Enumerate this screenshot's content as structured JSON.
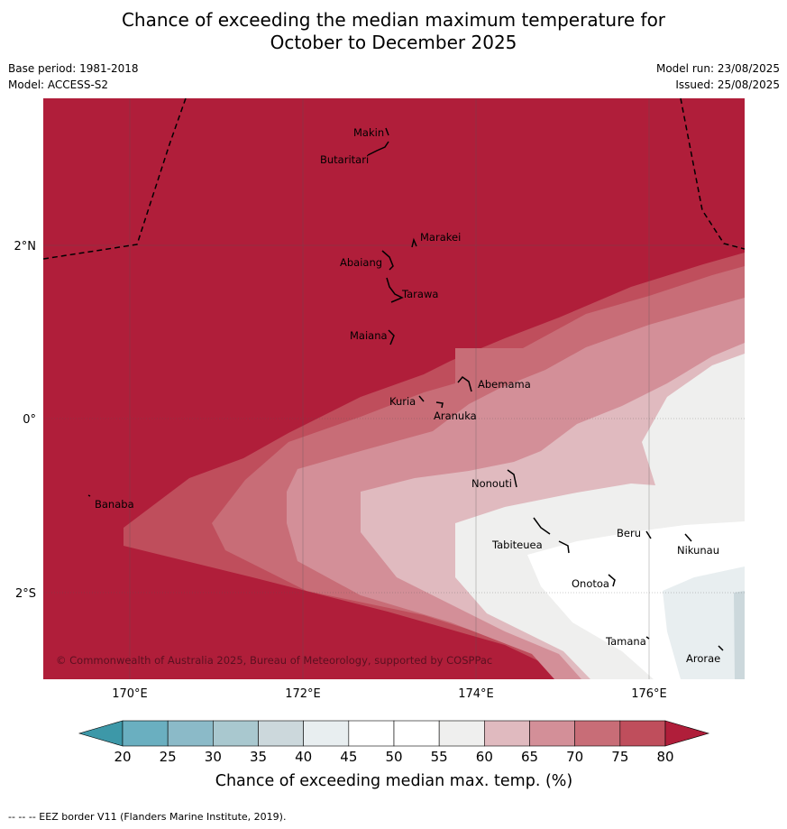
{
  "title": {
    "line1": "Chance of exceeding the median maximum temperature for",
    "line2": "October to December 2025"
  },
  "meta": {
    "base_period": "Base period: 1981-2018",
    "model": "Model: ACCESS-S2",
    "model_run": "Model run: 23/08/2025",
    "issued": "Issued: 25/08/2025"
  },
  "map": {
    "lon_labels": [
      "170°E",
      "172°E",
      "174°E",
      "176°E"
    ],
    "lat_labels": [
      "2°N",
      "0°",
      "2°S"
    ],
    "places": [
      "Makin",
      "Butaritari",
      "Marakei",
      "Abaiang",
      "Tarawa",
      "Maiana",
      "Abemama",
      "Kuria",
      "Aranuka",
      "Nonouti",
      "Banaba",
      "Tabiteuea",
      "Beru",
      "Nikunau",
      "Onotoa",
      "Tamana",
      "Arorae"
    ],
    "copyright": "© Commonwealth of Australia 2025, Bureau of Meteorology, supported by COSPPac"
  },
  "colorbar": {
    "ticks": [
      "20",
      "25",
      "30",
      "35",
      "40",
      "45",
      "50",
      "55",
      "60",
      "65",
      "70",
      "75",
      "80"
    ],
    "colors": [
      "#6aafc0",
      "#8bbac8",
      "#a9c8cf",
      "#ccd8dc",
      "#e8eef0",
      "#ffffff",
      "#ffffff",
      "#efefee",
      "#e0babf",
      "#d38f98",
      "#c86d77",
      "#bf4e5c"
    ],
    "low_color": "#3d98a8",
    "high_color": "#b01e3a",
    "label": "Chance of exceeding median max. temp. (%)"
  },
  "footnote": "-- -- -- EEZ border V11 (Flanders Marine Institute, 2019)."
}
